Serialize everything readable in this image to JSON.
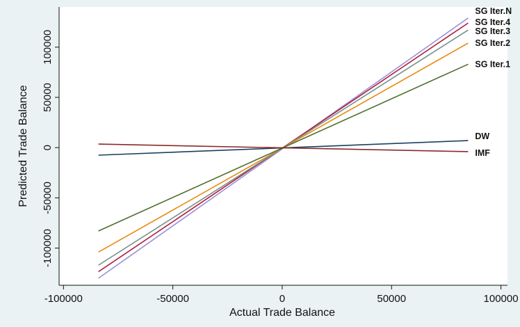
{
  "chart_data": {
    "type": "line",
    "title": "",
    "xlabel": "Actual Trade Balance",
    "ylabel": "Predicted Trade Balance",
    "xlim": [
      -102000,
      103000
    ],
    "ylim": [
      -137000,
      140000
    ],
    "xticks": [
      -100000,
      -50000,
      0,
      50000,
      100000
    ],
    "yticks": [
      -100000,
      -50000,
      0,
      50000,
      100000
    ],
    "grid": false,
    "legend": "labels at line ends (right)",
    "series": [
      {
        "name": "SG Iter.N",
        "color": "#9b8fd6",
        "x": [
          -84000,
          85000
        ],
        "y": [
          -130000,
          129000
        ]
      },
      {
        "name": "SG Iter.4",
        "color": "#b01a3c",
        "x": [
          -84000,
          85000
        ],
        "y": [
          -123500,
          124000
        ]
      },
      {
        "name": "SG Iter.3",
        "color": "#72908c",
        "x": [
          -84000,
          85000
        ],
        "y": [
          -117000,
          117000
        ]
      },
      {
        "name": "SG Iter.2",
        "color": "#e88a10",
        "x": [
          -84000,
          85000
        ],
        "y": [
          -104000,
          104000
        ]
      },
      {
        "name": "SG Iter.1",
        "color": "#4f6e2e",
        "x": [
          -84000,
          85000
        ],
        "y": [
          -83000,
          83000
        ]
      },
      {
        "name": "DW",
        "color": "#1d3f5e",
        "x": [
          -84000,
          85000
        ],
        "y": [
          -7500,
          7000
        ]
      },
      {
        "name": "IMF",
        "color": "#8a2a2a",
        "x": [
          -84000,
          85000
        ],
        "y": [
          3500,
          -4000
        ]
      }
    ]
  }
}
